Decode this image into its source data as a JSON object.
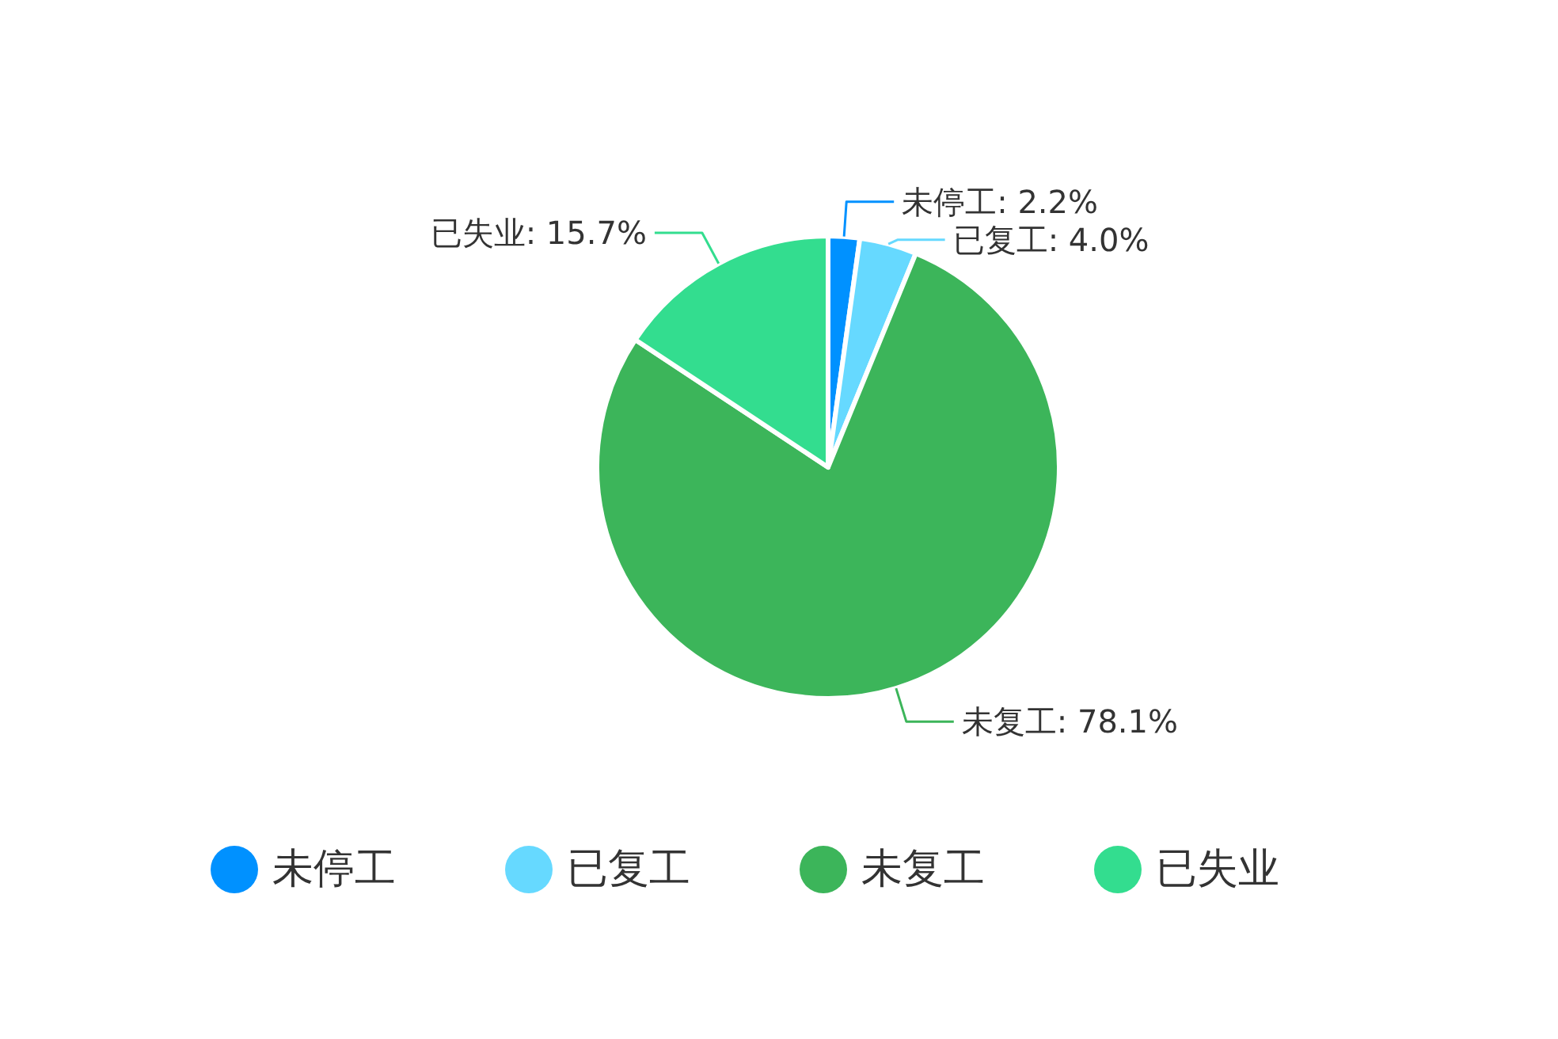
{
  "chart_data": {
    "type": "pie",
    "categories": [
      "未停工",
      "已复工",
      "未复工",
      "已失业"
    ],
    "values": [
      2.2,
      4.0,
      78.1,
      15.7
    ],
    "colors": [
      "#0091ff",
      "#66d9ff",
      "#3cb55a",
      "#33dd8f"
    ],
    "value_labels": [
      ": 2.2%",
      ": 4.0%",
      ": 78.1%",
      ": 15.7%"
    ],
    "legend": "bottom"
  }
}
